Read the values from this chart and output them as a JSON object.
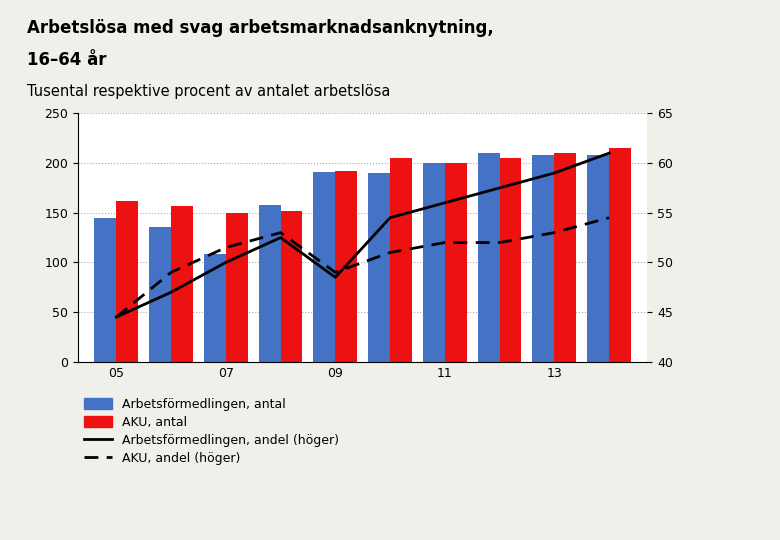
{
  "title_line1": "Arbetslösa med svag arbetsmarknadsanknytning,",
  "title_line2": "16–64 år",
  "subtitle": "Tusental respektive procent av antalet arbetslösa",
  "years": [
    2005,
    2006,
    2007,
    2008,
    2009,
    2010,
    2011,
    2012,
    2013,
    2014
  ],
  "xtick_labels": [
    "05",
    "07",
    "09",
    "11",
    "13"
  ],
  "xtick_positions": [
    2005,
    2007,
    2009,
    2011,
    2013
  ],
  "af_antal": [
    145,
    136,
    108,
    158,
    191,
    190,
    200,
    210,
    208,
    208
  ],
  "aku_antal": [
    162,
    157,
    150,
    152,
    192,
    205,
    200,
    205,
    210,
    215
  ],
  "af_andel": [
    44.5,
    47,
    50,
    52.5,
    48.5,
    54.5,
    56,
    57.5,
    59,
    61
  ],
  "aku_andel": [
    44.5,
    49,
    51.5,
    53,
    49,
    51,
    52,
    52,
    53,
    54.5
  ],
  "bar_width": 0.4,
  "color_af": "#4472C4",
  "color_aku": "#EE1111",
  "color_line": "#000000",
  "ylim_left": [
    0,
    250
  ],
  "ylim_right": [
    40,
    65
  ],
  "yticks_left": [
    0,
    50,
    100,
    150,
    200,
    250
  ],
  "yticks_right": [
    40,
    45,
    50,
    55,
    60,
    65
  ],
  "legend_af_antal": "Arbetsförmedlingen, antal",
  "legend_aku_antal": "AKU, antal",
  "legend_af_andel": "Arbetsförmedlingen, andel (höger)",
  "legend_aku_andel": "AKU, andel (höger)",
  "bg_color": "#f0f0eb",
  "plot_bg_color": "#ffffff",
  "title_fontsize": 12,
  "subtitle_fontsize": 10.5,
  "label_fontsize": 9
}
